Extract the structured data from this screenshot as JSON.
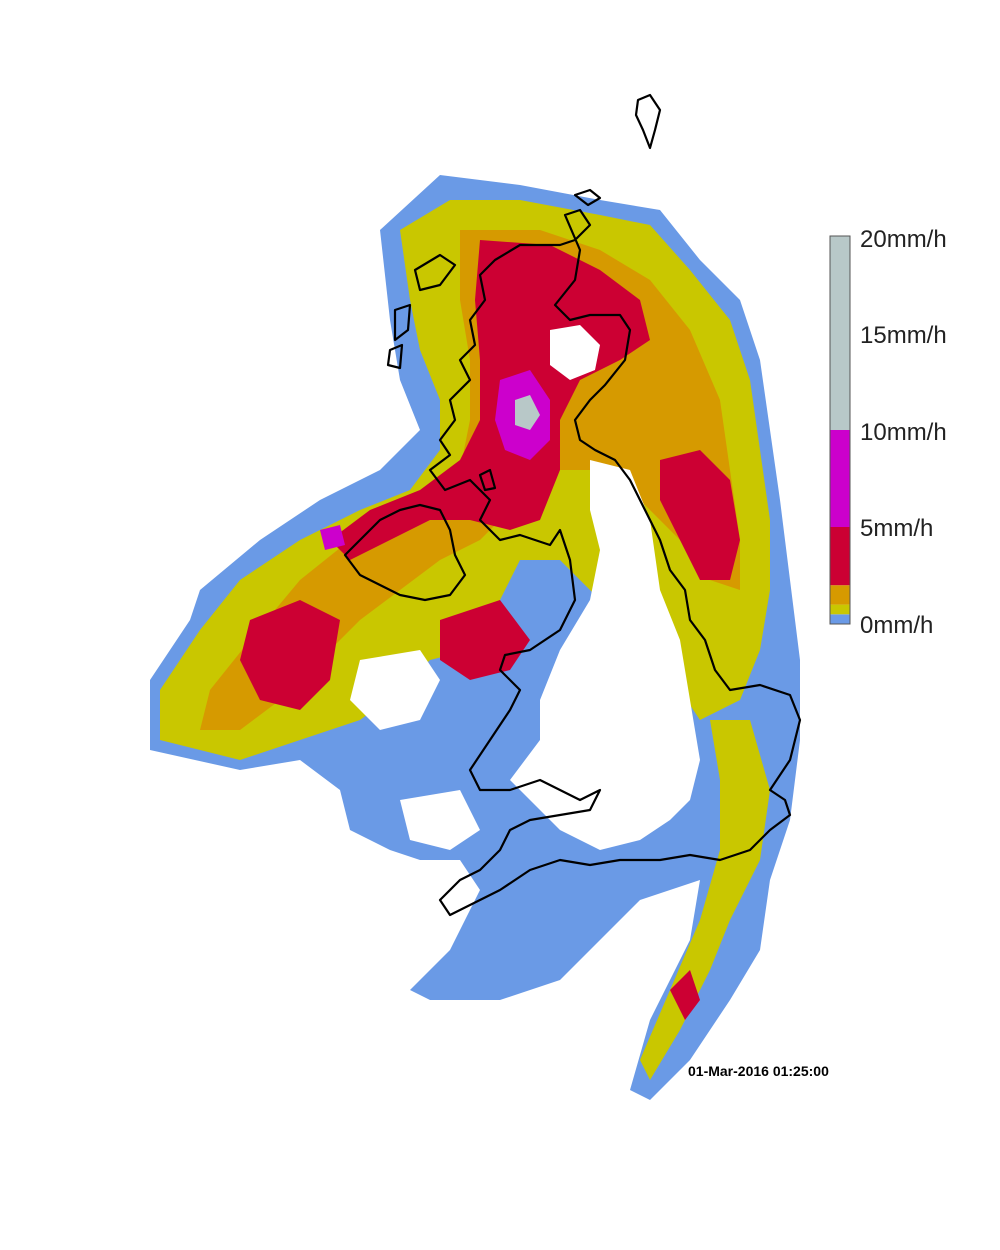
{
  "map": {
    "timestamp": "01-Mar-2016 01:25:00"
  },
  "legend": {
    "units_labels": [
      "0mm/h",
      "5mm/h",
      "10mm/h",
      "15mm/h",
      "20mm/h"
    ],
    "bands": [
      {
        "from": 0,
        "to": 0.5,
        "color": "#6a9ae6"
      },
      {
        "from": 0.5,
        "to": 1,
        "color": "#c9c700"
      },
      {
        "from": 1,
        "to": 2,
        "color": "#d69a00"
      },
      {
        "from": 2,
        "to": 5,
        "color": "#cc0033"
      },
      {
        "from": 5,
        "to": 10,
        "color": "#cc00cc"
      },
      {
        "from": 10,
        "to": 20,
        "color": "#b8c8c8"
      }
    ],
    "max": 20
  },
  "colors": {
    "very_light": "#6a9ae6",
    "light": "#c9c700",
    "moderate": "#d69a00",
    "heavy": "#cc0033",
    "very_heavy": "#cc00cc",
    "extreme": "#b8c8c8",
    "coastline": "#000000"
  }
}
